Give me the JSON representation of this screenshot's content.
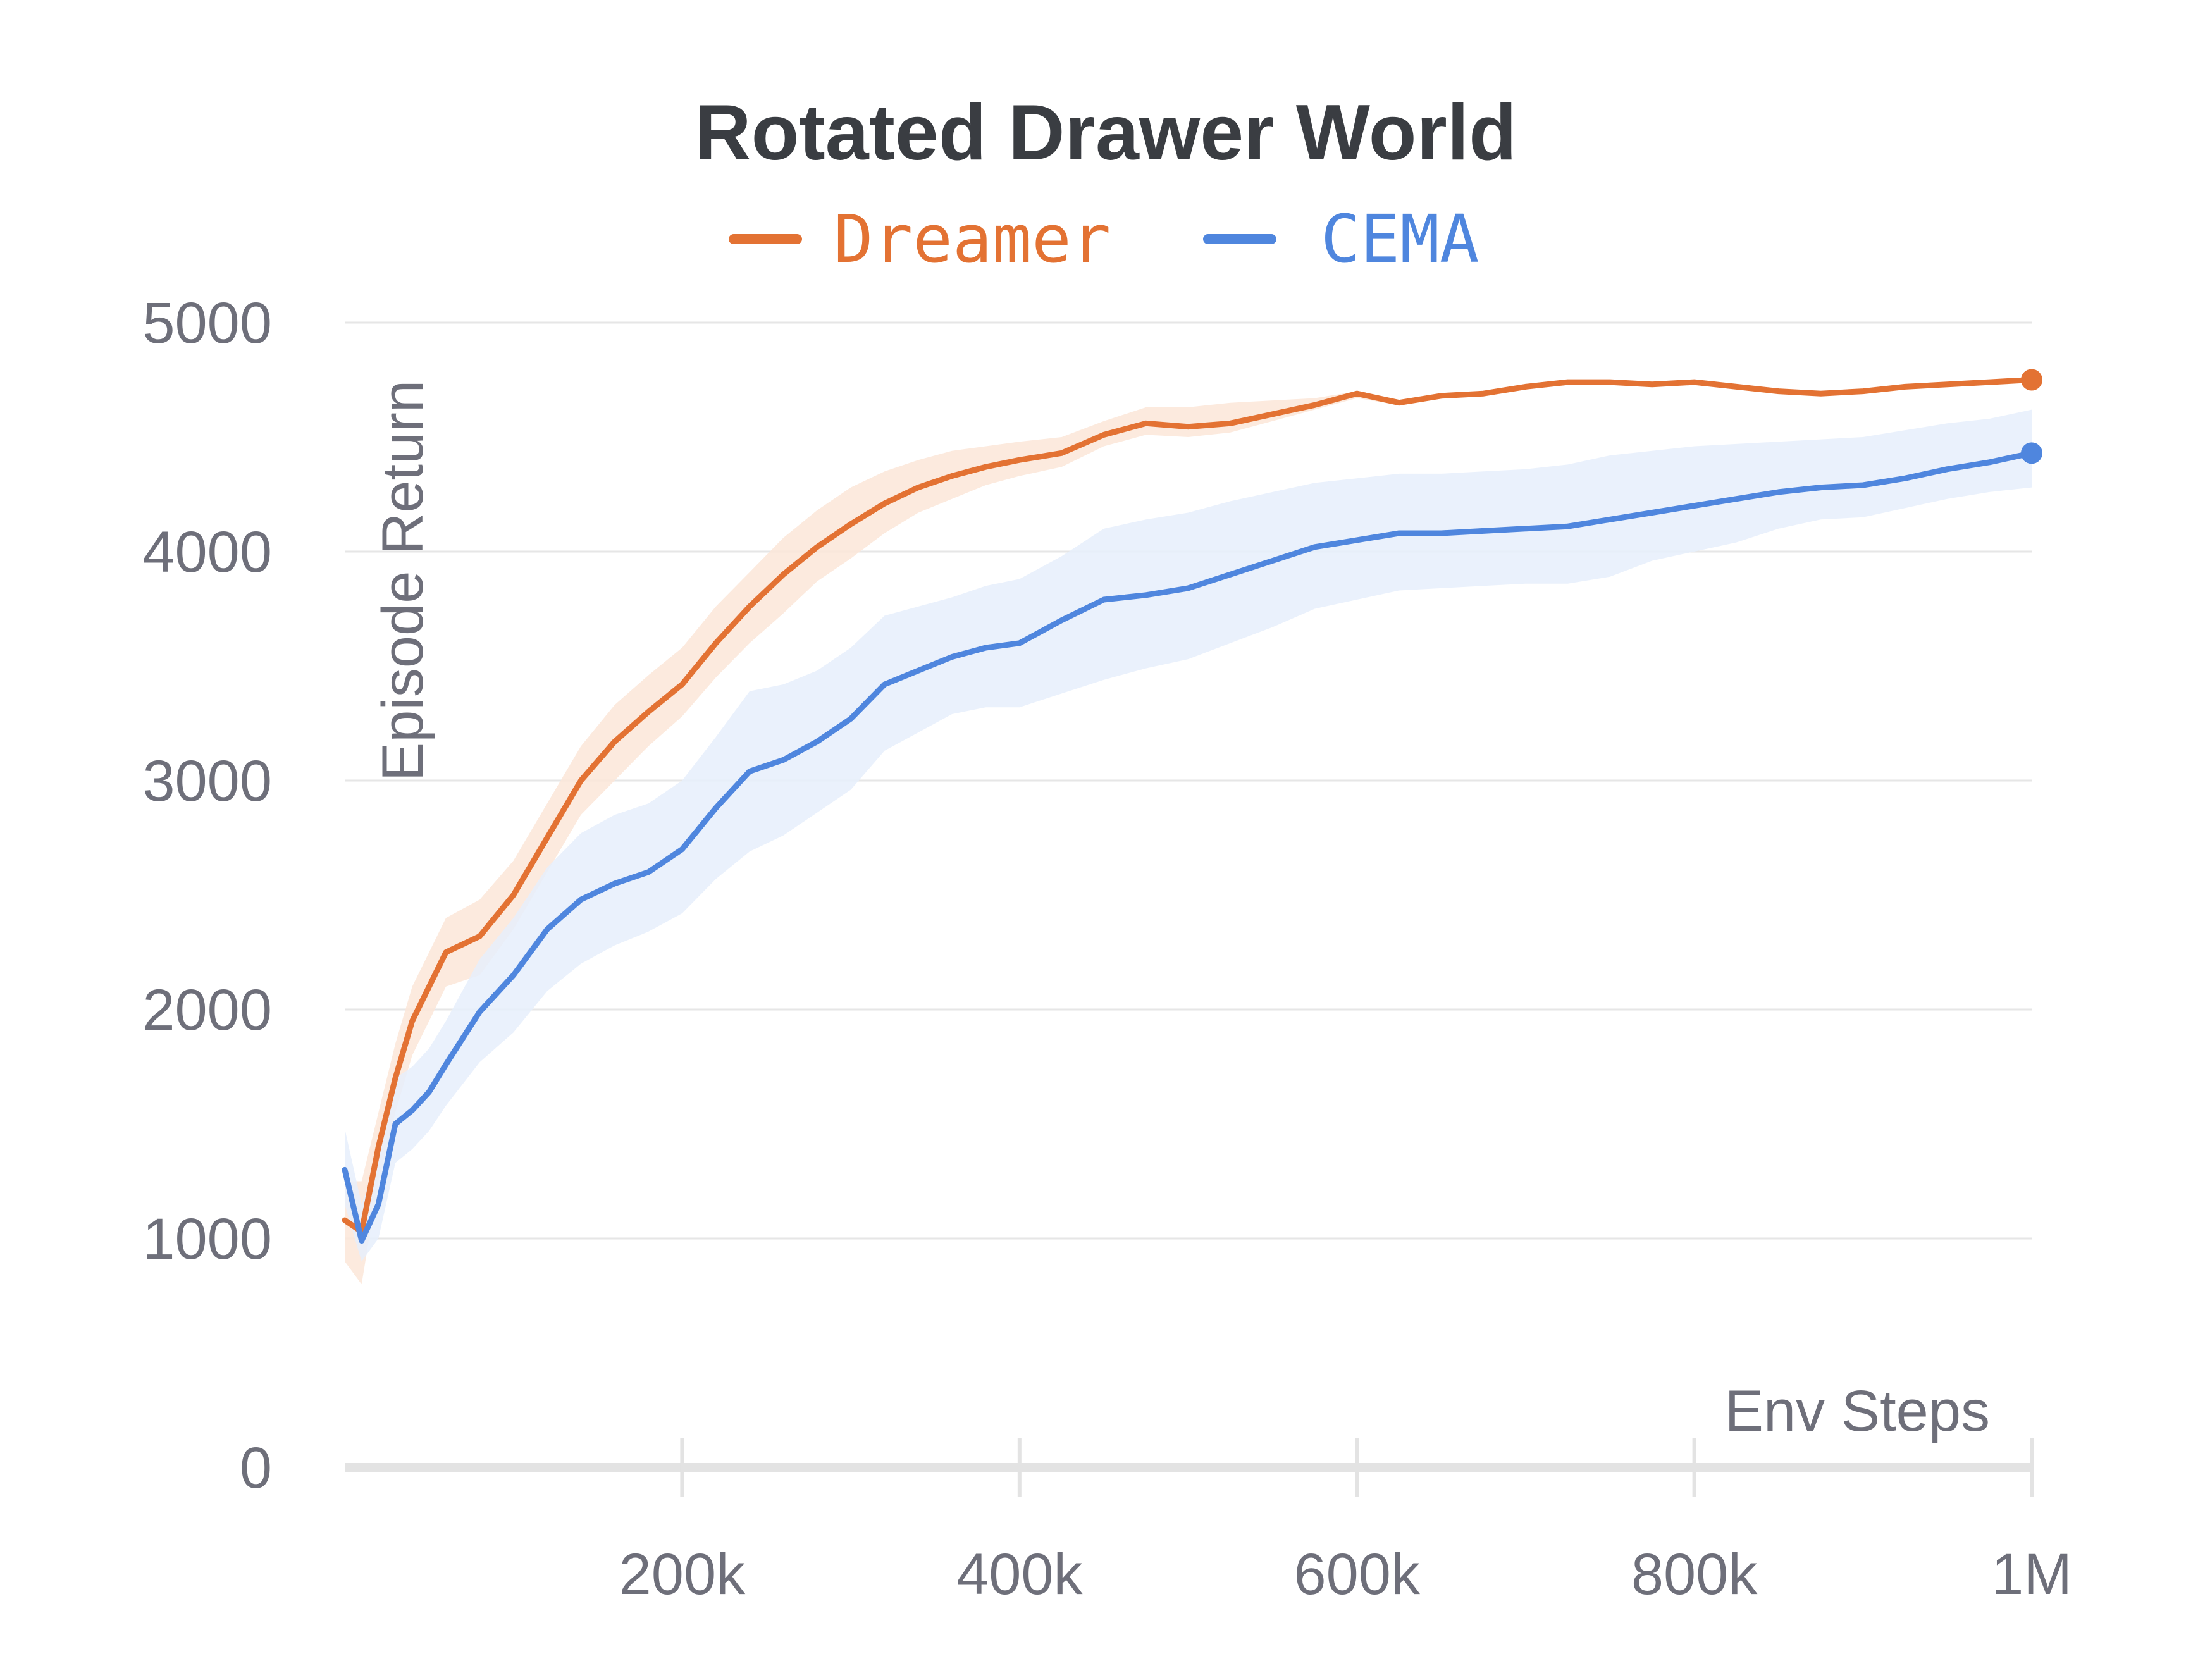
{
  "chart_data": {
    "type": "line",
    "title": "Rotated Drawer World",
    "xlabel": "Env Steps",
    "ylabel": "Episode Return",
    "xlim": [
      0,
      1000000
    ],
    "ylim": [
      0,
      5000
    ],
    "grid": true,
    "legend_position": "top",
    "x_ticks": [
      {
        "value": 200000,
        "label": "200k"
      },
      {
        "value": 400000,
        "label": "400k"
      },
      {
        "value": 600000,
        "label": "600k"
      },
      {
        "value": 800000,
        "label": "800k"
      },
      {
        "value": 1000000,
        "label": "1M"
      }
    ],
    "y_ticks": [
      {
        "value": 0,
        "label": "0"
      },
      {
        "value": 1000,
        "label": "1000"
      },
      {
        "value": 2000,
        "label": "2000"
      },
      {
        "value": 3000,
        "label": "3000"
      },
      {
        "value": 4000,
        "label": "4000"
      },
      {
        "value": 5000,
        "label": "5000"
      }
    ],
    "x": [
      0,
      10000,
      20000,
      30000,
      40000,
      50000,
      60000,
      80000,
      100000,
      120000,
      140000,
      160000,
      180000,
      200000,
      220000,
      240000,
      260000,
      280000,
      300000,
      320000,
      340000,
      360000,
      380000,
      400000,
      425000,
      450000,
      475000,
      500000,
      525000,
      550000,
      575000,
      600000,
      625000,
      650000,
      675000,
      700000,
      725000,
      750000,
      775000,
      800000,
      825000,
      850000,
      875000,
      900000,
      925000,
      950000,
      975000,
      1000000
    ],
    "series": [
      {
        "name": "Dreamer",
        "color": "#e37233",
        "band_color": "#fbe6d8",
        "values": [
          1080,
          1030,
          1400,
          1700,
          1950,
          2100,
          2250,
          2320,
          2500,
          2750,
          3000,
          3170,
          3300,
          3420,
          3600,
          3760,
          3900,
          4020,
          4120,
          4210,
          4280,
          4330,
          4370,
          4400,
          4430,
          4510,
          4560,
          4545,
          4560,
          4600,
          4640,
          4690,
          4650,
          4680,
          4690,
          4720,
          4740,
          4740,
          4730,
          4740,
          4720,
          4700,
          4690,
          4700,
          4720,
          4730,
          4740,
          4750
        ],
        "lower": [
          900,
          800,
          1250,
          1550,
          1800,
          1950,
          2100,
          2150,
          2350,
          2600,
          2850,
          3000,
          3150,
          3280,
          3450,
          3600,
          3730,
          3870,
          3970,
          4080,
          4170,
          4230,
          4290,
          4330,
          4370,
          4460,
          4510,
          4500,
          4520,
          4570,
          4620,
          4670,
          4640,
          4670,
          4680,
          4710,
          4730,
          4730,
          4720,
          4730,
          4710,
          4690,
          4680,
          4690,
          4710,
          4720,
          4730,
          4740
        ],
        "upper": [
          1250,
          1250,
          1550,
          1850,
          2100,
          2250,
          2400,
          2480,
          2650,
          2900,
          3150,
          3330,
          3460,
          3580,
          3760,
          3910,
          4060,
          4180,
          4280,
          4350,
          4400,
          4440,
          4460,
          4480,
          4500,
          4570,
          4630,
          4630,
          4650,
          4660,
          4670,
          4700,
          4660,
          4690,
          4700,
          4730,
          4750,
          4750,
          4740,
          4750,
          4730,
          4710,
          4700,
          4710,
          4730,
          4740,
          4750,
          4760
        ]
      },
      {
        "name": "CEMA",
        "color": "#4f86de",
        "band_color": "#e6eefb",
        "values": [
          1300,
          990,
          1150,
          1500,
          1560,
          1640,
          1760,
          1990,
          2150,
          2350,
          2480,
          2550,
          2600,
          2700,
          2880,
          3040,
          3090,
          3170,
          3270,
          3420,
          3480,
          3540,
          3580,
          3600,
          3700,
          3790,
          3810,
          3840,
          3900,
          3960,
          4020,
          4050,
          4080,
          4080,
          4090,
          4100,
          4110,
          4140,
          4170,
          4200,
          4230,
          4260,
          4280,
          4290,
          4320,
          4360,
          4390,
          4430
        ],
        "lower": [
          1150,
          900,
          1000,
          1330,
          1390,
          1470,
          1580,
          1770,
          1900,
          2080,
          2200,
          2280,
          2340,
          2420,
          2570,
          2690,
          2760,
          2860,
          2960,
          3130,
          3210,
          3290,
          3320,
          3320,
          3380,
          3440,
          3490,
          3530,
          3600,
          3670,
          3750,
          3790,
          3830,
          3840,
          3850,
          3860,
          3860,
          3890,
          3960,
          4000,
          4040,
          4100,
          4140,
          4150,
          4190,
          4230,
          4260,
          4280
        ],
        "upper": [
          1480,
          1150,
          1350,
          1700,
          1750,
          1830,
          1950,
          2220,
          2400,
          2620,
          2770,
          2850,
          2900,
          3000,
          3190,
          3390,
          3420,
          3480,
          3580,
          3720,
          3760,
          3800,
          3850,
          3880,
          3980,
          4100,
          4140,
          4170,
          4220,
          4260,
          4300,
          4320,
          4340,
          4340,
          4350,
          4360,
          4380,
          4420,
          4440,
          4460,
          4470,
          4480,
          4490,
          4500,
          4530,
          4560,
          4580,
          4620
        ]
      }
    ]
  }
}
